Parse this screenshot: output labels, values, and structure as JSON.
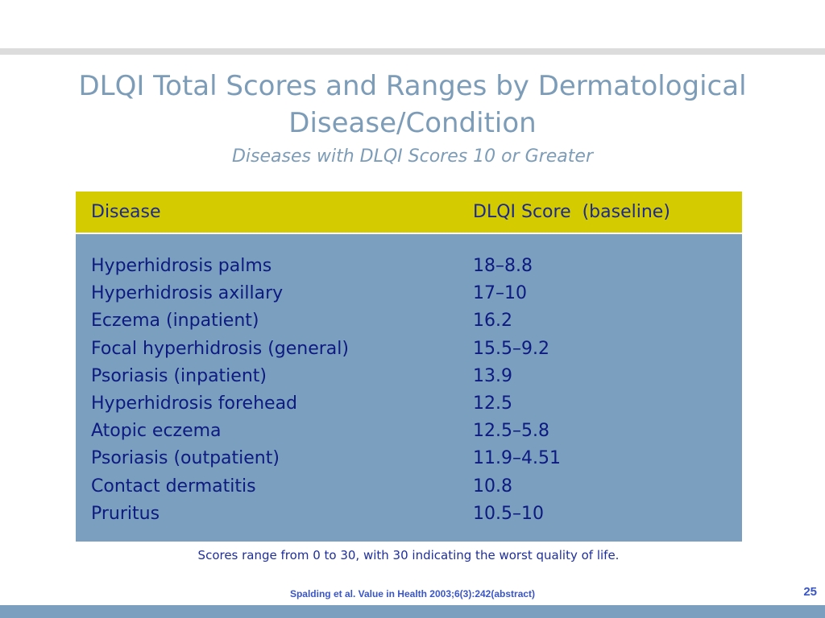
{
  "slide": {
    "title_lines": [
      "DLQI Total Scores and Ranges by Dermatological",
      "Disease/Condition"
    ],
    "subtitle": "Diseases with DLQI Scores 10 or Greater",
    "table": {
      "headers": {
        "disease": "Disease",
        "score": "DLQI Score  (baseline)"
      },
      "rows": [
        {
          "disease": "Hyperhidrosis palms",
          "score": "18–8.8"
        },
        {
          "disease": "Hyperhidrosis axillary",
          "score": "17–10"
        },
        {
          "disease": "Eczema (inpatient)",
          "score": "16.2"
        },
        {
          "disease": "Focal hyperhidrosis (general)",
          "score": "15.5–9.2"
        },
        {
          "disease": "Psoriasis (inpatient)",
          "score": "13.9"
        },
        {
          "disease": "Hyperhidrosis forehead",
          "score": "12.5"
        },
        {
          "disease": "Atopic eczema",
          "score": "12.5–5.8"
        },
        {
          "disease": "Psoriasis (outpatient)",
          "score": "11.9–4.51"
        },
        {
          "disease": "Contact dermatitis",
          "score": "10.8"
        },
        {
          "disease": "Pruritus",
          "score": "10.5–10"
        }
      ]
    },
    "note": "Scores range from 0 to 30, with 30 indicating the worst quality of life.",
    "citation": "Spalding et al. Value in Health 2003;6(3):242(abstract)",
    "page_number": "25"
  },
  "colors": {
    "title": "#7c9cb8",
    "header_band": "#d4cc00",
    "table_body": "#7b9fbf",
    "table_text": "#0d1a80",
    "citation": "#3a55c8",
    "top_rule": "#dcdcdc"
  }
}
